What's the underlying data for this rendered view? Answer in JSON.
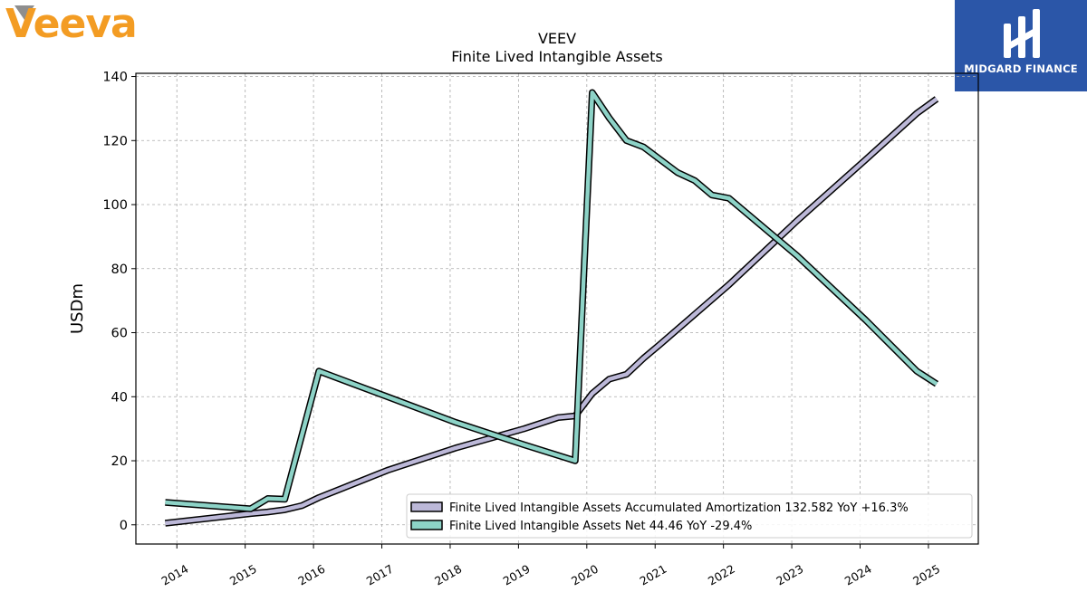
{
  "header": {
    "company_logo": "veeva-logo",
    "company_logo_text": "Veeva",
    "brand_name": "MIDGARD FINANCE",
    "brand_icon": "midgard-logo-icon",
    "colors": {
      "veeva_orange": "#f39c23",
      "veeva_gray": "#8e8e8e",
      "brand_blue": "#2b56a8"
    }
  },
  "chart_data": {
    "type": "line",
    "title": "VEEV",
    "subtitle": "Finite Lived Intangible Assets",
    "ylabel": "USDm",
    "xlabel": "",
    "ylim": [
      -6,
      141
    ],
    "xlim": [
      2013.4,
      2025.73
    ],
    "yticks": [
      0,
      20,
      40,
      60,
      80,
      100,
      120,
      140
    ],
    "xticks": [
      "2014",
      "2015",
      "2016",
      "2017",
      "2018",
      "2019",
      "2020",
      "2021",
      "2022",
      "2023",
      "2024",
      "2025"
    ],
    "grid": true,
    "legend_position": "lower-right",
    "series": [
      {
        "name": "Finite Lived Intangible Assets Accumulated Amortization  132.582 YoY +16.3%",
        "color": "#bcb8d8",
        "points": [
          [
            2013.83,
            0.5
          ],
          [
            2015.08,
            3.5
          ],
          [
            2015.33,
            4.0
          ],
          [
            2015.58,
            4.7
          ],
          [
            2015.83,
            6.0
          ],
          [
            2016.08,
            8.5
          ],
          [
            2017.08,
            17.0
          ],
          [
            2018.08,
            24.0
          ],
          [
            2019.08,
            30.0
          ],
          [
            2019.58,
            33.5
          ],
          [
            2019.83,
            34.0
          ],
          [
            2020.08,
            41.0
          ],
          [
            2020.33,
            45.5
          ],
          [
            2020.58,
            47.0
          ],
          [
            2020.83,
            52.0
          ],
          [
            2021.08,
            56.5
          ],
          [
            2022.08,
            75.0
          ],
          [
            2023.08,
            95.0
          ],
          [
            2024.08,
            114.0
          ],
          [
            2024.83,
            128.5
          ],
          [
            2025.12,
            133.0
          ]
        ]
      },
      {
        "name": "Finite Lived Intangible Assets Net  44.46 YoY -29.4%",
        "color": "#8dd3c7",
        "points": [
          [
            2013.83,
            7.0
          ],
          [
            2015.08,
            5.0
          ],
          [
            2015.33,
            8.2
          ],
          [
            2015.58,
            8.0
          ],
          [
            2016.08,
            48.0
          ],
          [
            2017.08,
            40.0
          ],
          [
            2018.08,
            32.0
          ],
          [
            2019.08,
            25.0
          ],
          [
            2019.83,
            20.0
          ],
          [
            2020.08,
            135.0
          ],
          [
            2020.33,
            127.0
          ],
          [
            2020.58,
            120.0
          ],
          [
            2020.83,
            118.0
          ],
          [
            2021.33,
            110.0
          ],
          [
            2021.58,
            107.5
          ],
          [
            2021.83,
            103.0
          ],
          [
            2022.08,
            102.0
          ],
          [
            2023.08,
            84.0
          ],
          [
            2024.08,
            64.0
          ],
          [
            2024.83,
            48.0
          ],
          [
            2025.12,
            44.0
          ]
        ]
      }
    ]
  }
}
